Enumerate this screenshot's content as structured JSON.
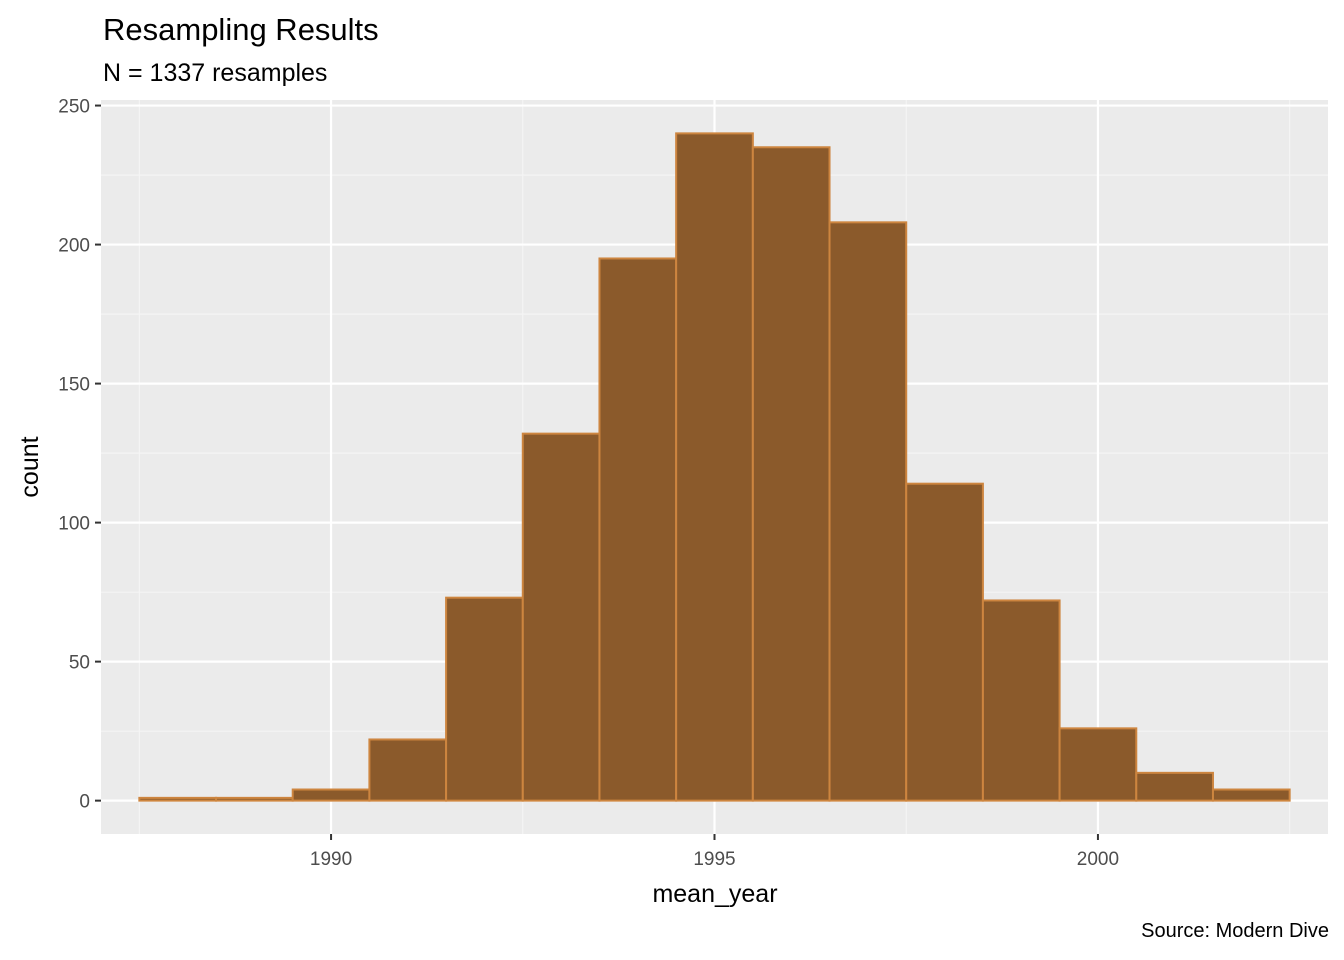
{
  "chart_data": {
    "type": "bar",
    "title": "Resampling Results",
    "subtitle": "N = 1337 resamples",
    "caption": "Source: Modern Dive",
    "xlabel": "mean_year",
    "ylabel": "count",
    "xlim": [
      1987.0,
      2003.0
    ],
    "ylim": [
      -12,
      252
    ],
    "binwidth": 1,
    "x_ticks": [
      "1990",
      "1995",
      "2000"
    ],
    "y_ticks": [
      "0",
      "50",
      "100",
      "150",
      "200",
      "250"
    ],
    "bins": [
      {
        "start": 1987.5,
        "end": 1988.5,
        "count": 1
      },
      {
        "start": 1988.5,
        "end": 1989.5,
        "count": 1
      },
      {
        "start": 1989.5,
        "end": 1990.5,
        "count": 4
      },
      {
        "start": 1990.5,
        "end": 1991.5,
        "count": 22
      },
      {
        "start": 1991.5,
        "end": 1992.5,
        "count": 73
      },
      {
        "start": 1992.5,
        "end": 1993.5,
        "count": 132
      },
      {
        "start": 1993.5,
        "end": 1994.5,
        "count": 195
      },
      {
        "start": 1994.5,
        "end": 1995.5,
        "count": 240
      },
      {
        "start": 1995.5,
        "end": 1996.5,
        "count": 235
      },
      {
        "start": 1996.5,
        "end": 1997.5,
        "count": 208
      },
      {
        "start": 1997.5,
        "end": 1998.5,
        "count": 114
      },
      {
        "start": 1998.5,
        "end": 1999.5,
        "count": 72
      },
      {
        "start": 1999.5,
        "end": 2000.5,
        "count": 26
      },
      {
        "start": 2000.5,
        "end": 2001.5,
        "count": 10
      },
      {
        "start": 2001.5,
        "end": 2002.5,
        "count": 4
      }
    ],
    "grid": true,
    "colors": {
      "panel_background": "#ebebeb",
      "grid_major": "#ffffff",
      "grid_minor": "#f5f5f5",
      "bar_fill": "#8b5a2b",
      "bar_outline": "#cd853f"
    }
  }
}
